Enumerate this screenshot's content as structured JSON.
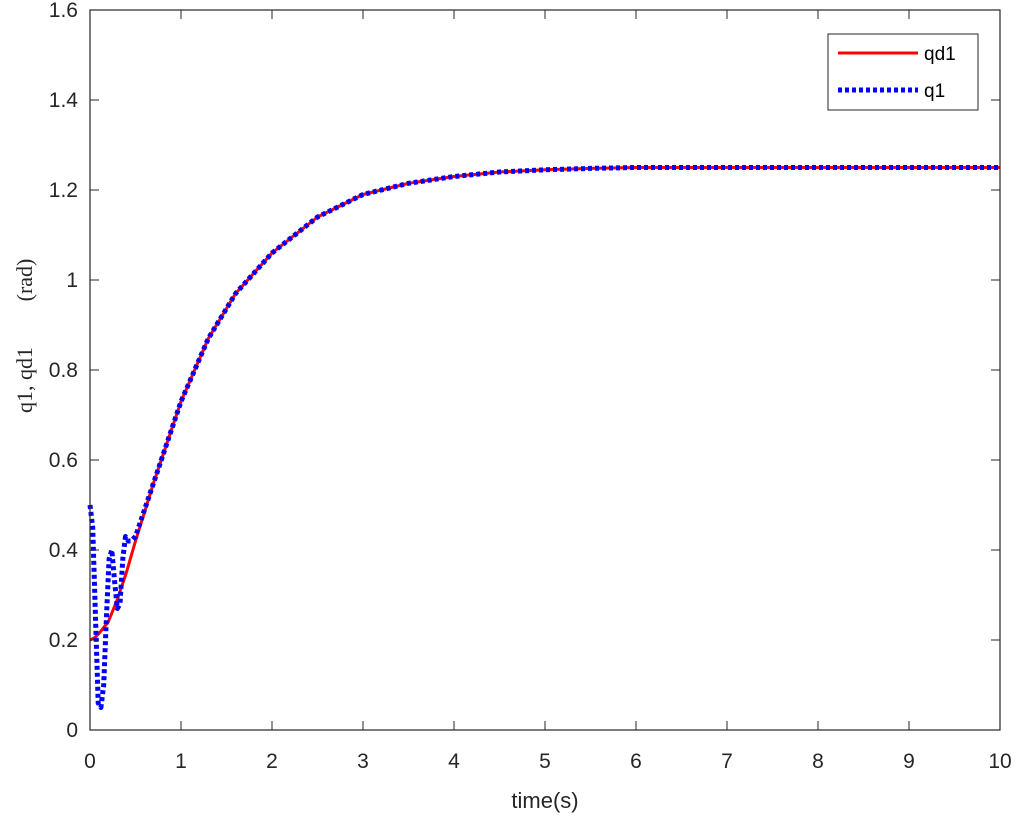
{
  "chart_data": {
    "type": "line",
    "title": "",
    "xlabel": "time(s)",
    "ylabel_main": "q1, qd1",
    "ylabel_unit": "(rad)",
    "xlim": [
      0,
      10
    ],
    "ylim": [
      0,
      1.6
    ],
    "x_ticks": [
      "0",
      "1",
      "2",
      "3",
      "4",
      "5",
      "6",
      "7",
      "8",
      "9",
      "10"
    ],
    "y_ticks": [
      "0",
      "0.2",
      "0.4",
      "0.6",
      "0.8",
      "1",
      "1.2",
      "1.4",
      "1.6"
    ],
    "grid": false,
    "legend_position": "top-right",
    "series": [
      {
        "name": "qd1",
        "color": "#ff0000",
        "style": "solid",
        "x": [
          0,
          0.05,
          0.1,
          0.2,
          0.3,
          0.4,
          0.5,
          0.7,
          1.0,
          1.3,
          1.6,
          2.0,
          2.5,
          3.0,
          3.5,
          4.0,
          4.5,
          5.0,
          5.5,
          6.0,
          7.0,
          8.0,
          9.0,
          10.0
        ],
        "y": [
          0.2,
          0.205,
          0.215,
          0.24,
          0.29,
          0.35,
          0.42,
          0.55,
          0.73,
          0.87,
          0.97,
          1.06,
          1.14,
          1.19,
          1.215,
          1.23,
          1.24,
          1.245,
          1.248,
          1.25,
          1.25,
          1.25,
          1.25,
          1.25
        ]
      },
      {
        "name": "q1",
        "color": "#0000ff",
        "style": "dotted",
        "x": [
          0,
          0.03,
          0.06,
          0.09,
          0.12,
          0.15,
          0.18,
          0.21,
          0.24,
          0.27,
          0.3,
          0.33,
          0.36,
          0.39,
          0.42,
          0.45,
          0.5,
          0.7,
          1.0,
          1.3,
          1.6,
          2.0,
          2.5,
          3.0,
          3.5,
          4.0,
          4.5,
          5.0,
          5.5,
          6.0,
          7.0,
          8.0,
          9.0,
          10.0
        ],
        "y": [
          0.5,
          0.45,
          0.25,
          0.06,
          0.05,
          0.1,
          0.25,
          0.38,
          0.4,
          0.33,
          0.27,
          0.28,
          0.38,
          0.43,
          0.42,
          0.42,
          0.43,
          0.55,
          0.73,
          0.87,
          0.97,
          1.06,
          1.14,
          1.19,
          1.215,
          1.23,
          1.24,
          1.245,
          1.248,
          1.25,
          1.25,
          1.25,
          1.25,
          1.25
        ]
      }
    ]
  }
}
